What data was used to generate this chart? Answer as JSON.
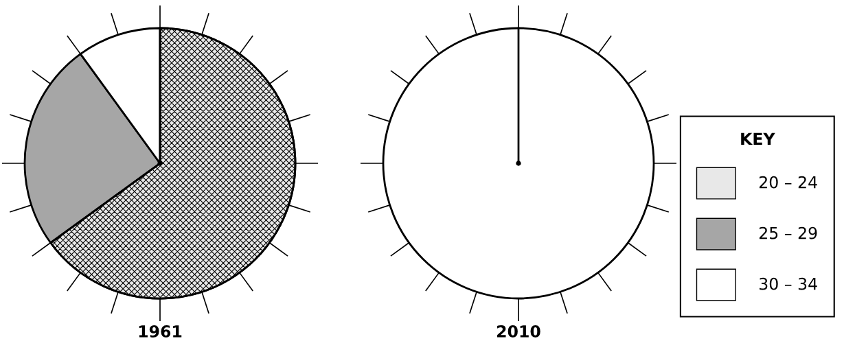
{
  "chart_data": [
    {
      "type": "pie",
      "title": "1961",
      "categories": [
        "20 – 24",
        "25 – 29",
        "30 – 34"
      ],
      "values": [
        65,
        25,
        10
      ],
      "colors": [
        "#e8e8e8",
        "#a6a6a6",
        "#ffffff"
      ],
      "legend": "right",
      "legend_title": "KEY"
    },
    {
      "type": "other",
      "title": "2010"
    }
  ]
}
